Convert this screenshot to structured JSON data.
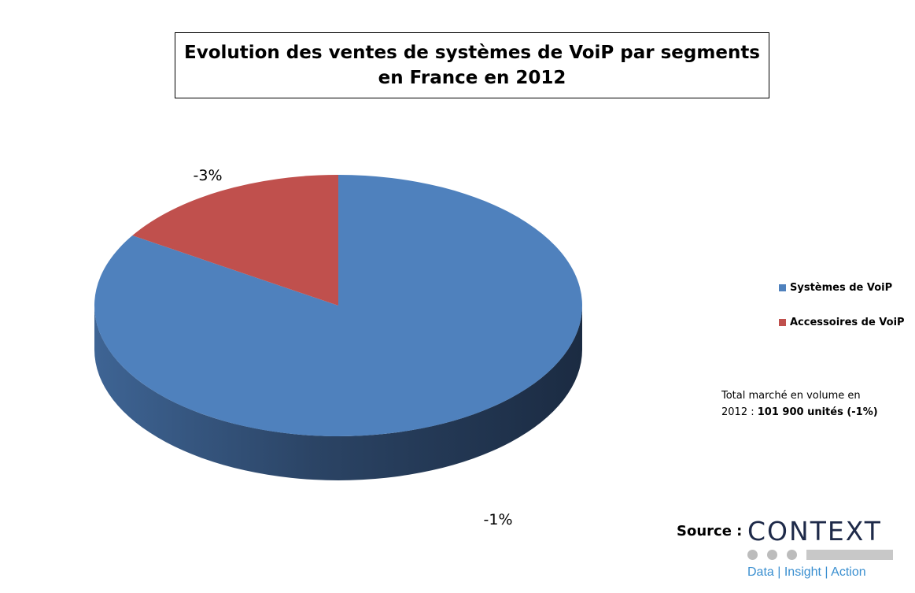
{
  "title": {
    "line1": "Evolution des ventes de systèmes de VoiP par segments",
    "line2": "en France en 2012"
  },
  "chart_data": {
    "type": "pie",
    "title": "Evolution des ventes de systèmes de VoiP par segments en France en 2012",
    "series": [
      {
        "name": "Systèmes de VoiP",
        "share": 0.84,
        "label": "-1%",
        "color": "#4f81bd"
      },
      {
        "name": "Accessoires de VoiP",
        "share": 0.16,
        "label": "-3%",
        "color": "#c0504d"
      }
    ],
    "legend_position": "right"
  },
  "note": {
    "text": "Total marché en volume en 2012 :",
    "highlight": "101 900 unités (-1%)"
  },
  "source": {
    "label": "Source :",
    "logo_name": "CONTEXT",
    "logo_tagline": "Data | Insight | Action"
  }
}
